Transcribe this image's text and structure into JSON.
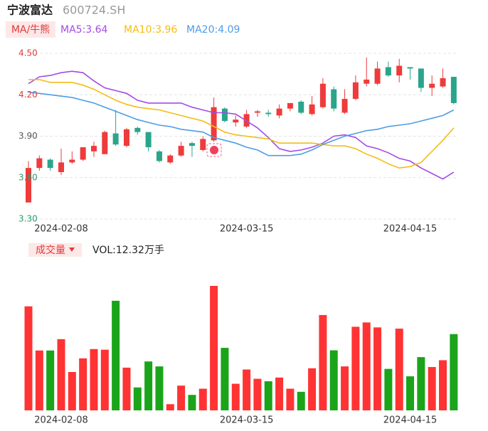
{
  "header": {
    "name": "宁波富达",
    "code": "600724.SH"
  },
  "legend": {
    "tag": "MA/牛熊"
  },
  "chart_data": [
    {
      "type": "candlestick",
      "categories": [
        null,
        null,
        null,
        "2024-02-08",
        null,
        null,
        null,
        null,
        null,
        null,
        null,
        null,
        null,
        null,
        null,
        null,
        null,
        null,
        null,
        null,
        "2024-03-15",
        null,
        null,
        null,
        null,
        null,
        null,
        null,
        null,
        null,
        null,
        null,
        null,
        null,
        null,
        "2024-04-15",
        null,
        null,
        null,
        null
      ],
      "open": [
        3.42,
        3.67,
        3.73,
        3.64,
        3.71,
        3.73,
        3.79,
        3.77,
        3.92,
        3.83,
        3.96,
        3.93,
        3.79,
        3.71,
        3.76,
        3.85,
        3.8,
        3.87,
        4.1,
        4.0,
        3.97,
        4.07,
        4.07,
        4.05,
        4.1,
        4.15,
        4.06,
        4.11,
        4.24,
        4.07,
        4.17,
        4.28,
        4.28,
        4.4,
        4.34,
        4.4,
        4.39,
        4.25,
        4.26,
        4.33
      ],
      "high": [
        3.72,
        3.76,
        3.74,
        3.81,
        3.79,
        3.82,
        3.86,
        3.94,
        4.09,
        3.96,
        3.97,
        3.93,
        3.8,
        3.77,
        3.86,
        3.86,
        3.9,
        4.18,
        4.11,
        4.05,
        4.09,
        4.09,
        4.09,
        4.13,
        4.14,
        4.16,
        4.19,
        4.32,
        4.26,
        4.24,
        4.34,
        4.47,
        4.44,
        4.44,
        4.46,
        4.4,
        4.39,
        4.34,
        4.39,
        4.33
      ],
      "low": [
        3.42,
        3.65,
        3.65,
        3.62,
        3.7,
        3.72,
        3.75,
        3.77,
        3.83,
        3.82,
        3.91,
        3.79,
        3.71,
        3.7,
        3.75,
        3.75,
        3.79,
        3.86,
        4.0,
        3.97,
        3.96,
        4.04,
        4.04,
        4.03,
        4.08,
        4.06,
        4.05,
        4.1,
        4.08,
        4.06,
        4.16,
        4.26,
        4.27,
        4.33,
        4.29,
        4.31,
        4.22,
        4.19,
        4.25,
        4.13
      ],
      "close": [
        3.67,
        3.74,
        3.67,
        3.71,
        3.73,
        3.82,
        3.83,
        3.93,
        3.84,
        3.95,
        3.93,
        3.82,
        3.72,
        3.76,
        3.83,
        3.83,
        3.88,
        4.11,
        4.01,
        4.02,
        4.06,
        4.08,
        4.06,
        4.1,
        4.14,
        4.07,
        4.13,
        4.28,
        4.1,
        4.17,
        4.29,
        4.31,
        4.39,
        4.34,
        4.41,
        4.39,
        4.25,
        4.28,
        4.32,
        4.14
      ],
      "up_color": "#ee3b3b",
      "down_color": "#2aa58c",
      "series": [
        {
          "name": "MA5:3.64",
          "color": "#a24be6",
          "values": [
            4.28,
            4.33,
            4.34,
            4.36,
            4.37,
            4.36,
            4.3,
            4.25,
            4.23,
            4.21,
            4.16,
            4.14,
            4.14,
            4.14,
            4.14,
            4.11,
            4.09,
            4.07,
            4.07,
            4.06,
            4.01,
            3.96,
            3.89,
            3.81,
            3.79,
            3.8,
            3.82,
            3.85,
            3.9,
            3.91,
            3.89,
            3.83,
            3.81,
            3.78,
            3.74,
            3.72,
            3.67,
            3.63,
            3.59,
            3.64
          ]
        },
        {
          "name": "MA10:3.96",
          "color": "#f4bd16",
          "values": [
            4.31,
            4.31,
            4.29,
            4.29,
            4.29,
            4.27,
            4.24,
            4.2,
            4.16,
            4.13,
            4.11,
            4.1,
            4.09,
            4.07,
            4.05,
            4.03,
            4.01,
            3.97,
            3.93,
            3.91,
            3.9,
            3.89,
            3.88,
            3.85,
            3.85,
            3.85,
            3.85,
            3.84,
            3.83,
            3.83,
            3.81,
            3.77,
            3.74,
            3.7,
            3.67,
            3.68,
            3.71,
            3.79,
            3.87,
            3.96
          ]
        },
        {
          "name": "MA20:4.09",
          "color": "#4d9de6",
          "values": [
            4.22,
            4.21,
            4.2,
            4.19,
            4.18,
            4.16,
            4.14,
            4.11,
            4.08,
            4.05,
            4.02,
            4.0,
            3.98,
            3.97,
            3.95,
            3.94,
            3.93,
            3.89,
            3.87,
            3.85,
            3.82,
            3.8,
            3.76,
            3.76,
            3.76,
            3.77,
            3.8,
            3.84,
            3.87,
            3.9,
            3.92,
            3.94,
            3.95,
            3.97,
            3.98,
            3.99,
            4.01,
            4.03,
            4.05,
            4.09
          ]
        }
      ],
      "ylim": [
        3.3,
        4.5
      ],
      "yticks": [
        {
          "value": 4.5,
          "label": "4.50"
        },
        {
          "value": 4.2,
          "label": "4.20"
        },
        {
          "value": 3.9,
          "label": "3.90"
        },
        {
          "value": 3.6,
          "label": "3.60"
        },
        {
          "value": 3.3,
          "label": "3.30"
        }
      ],
      "ytick_colors": [
        "#e23a3a",
        "#e23a3a",
        "#555555",
        "#2a9a6c",
        "#2a9a6c"
      ],
      "grid": true
    },
    {
      "type": "bar",
      "tag": "成交量",
      "label": "VOL:12.32万手",
      "categories": [
        null,
        null,
        null,
        "2024-02-08",
        null,
        null,
        null,
        null,
        null,
        null,
        null,
        null,
        null,
        null,
        null,
        null,
        null,
        null,
        null,
        null,
        "2024-03-15",
        null,
        null,
        null,
        null,
        null,
        null,
        null,
        null,
        null,
        null,
        null,
        null,
        null,
        null,
        "2024-04-15",
        null,
        null,
        null,
        null
      ],
      "values": [
        16.8,
        9.67,
        9.67,
        11.5,
        6.2,
        8.4,
        9.9,
        9.8,
        17.7,
        6.9,
        3.7,
        7.9,
        7.1,
        1.0,
        4.0,
        2.5,
        3.5,
        20.1,
        10.1,
        4.3,
        6.6,
        5.1,
        4.7,
        5.3,
        3.5,
        3.0,
        6.8,
        15.4,
        9.7,
        7.1,
        13.5,
        14.2,
        13.4,
        6.7,
        13.2,
        5.5,
        8.6,
        7.0,
        8.1,
        12.32
      ],
      "up_color": "#ff3333",
      "down_color": "#1aa41a"
    }
  ]
}
